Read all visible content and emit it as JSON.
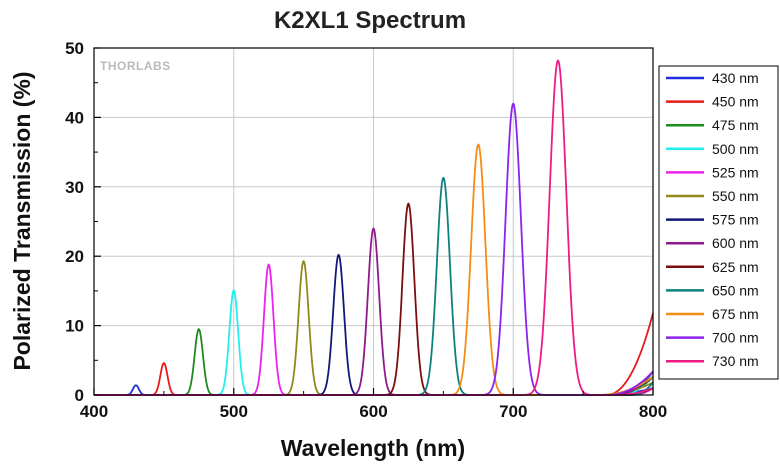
{
  "chart_data": {
    "type": "line",
    "title": "K2XL1 Spectrum",
    "xlabel": "Wavelength (nm)",
    "ylabel": "Polarized Transmission (%)",
    "xlim": [
      400,
      800
    ],
    "ylim": [
      0,
      50
    ],
    "x_ticks": [
      400,
      500,
      600,
      700,
      800
    ],
    "y_ticks": [
      0,
      10,
      20,
      30,
      40,
      50
    ],
    "grid": true,
    "legend_position": "right",
    "watermark": "THORLABS",
    "series": [
      {
        "name": "430 nm",
        "color": "#1f2fe0",
        "peak_x": 430,
        "peak_y": 1.4,
        "fwhm": 5
      },
      {
        "name": "450 nm",
        "color": "#e81a1a",
        "peak_x": 450,
        "peak_y": 4.6,
        "fwhm": 6
      },
      {
        "name": "475 nm",
        "color": "#1e8a1e",
        "peak_x": 475,
        "peak_y": 9.5,
        "fwhm": 7
      },
      {
        "name": "500 nm",
        "color": "#22eeee",
        "peak_x": 500,
        "peak_y": 15.1,
        "fwhm": 7.5
      },
      {
        "name": "525 nm",
        "color": "#ee22ee",
        "peak_x": 525,
        "peak_y": 18.8,
        "fwhm": 8
      },
      {
        "name": "550 nm",
        "color": "#8f8a1c",
        "peak_x": 550,
        "peak_y": 19.3,
        "fwhm": 8.5
      },
      {
        "name": "575 nm",
        "color": "#121878",
        "peak_x": 575,
        "peak_y": 20.2,
        "fwhm": 9
      },
      {
        "name": "600 nm",
        "color": "#8e1a8e",
        "peak_x": 600,
        "peak_y": 24.0,
        "fwhm": 9.5
      },
      {
        "name": "625 nm",
        "color": "#7a0e0e",
        "peak_x": 625,
        "peak_y": 27.6,
        "fwhm": 10
      },
      {
        "name": "650 nm",
        "color": "#0e8080",
        "peak_x": 650,
        "peak_y": 31.3,
        "fwhm": 11
      },
      {
        "name": "675 nm",
        "color": "#f58c14",
        "peak_x": 675,
        "peak_y": 36.1,
        "fwhm": 12
      },
      {
        "name": "700 nm",
        "color": "#8e22ee",
        "peak_x": 700,
        "peak_y": 42.0,
        "fwhm": 13
      },
      {
        "name": "730 nm",
        "color": "#ee1a86",
        "peak_x": 732,
        "peak_y": 48.2,
        "fwhm": 14
      }
    ]
  }
}
